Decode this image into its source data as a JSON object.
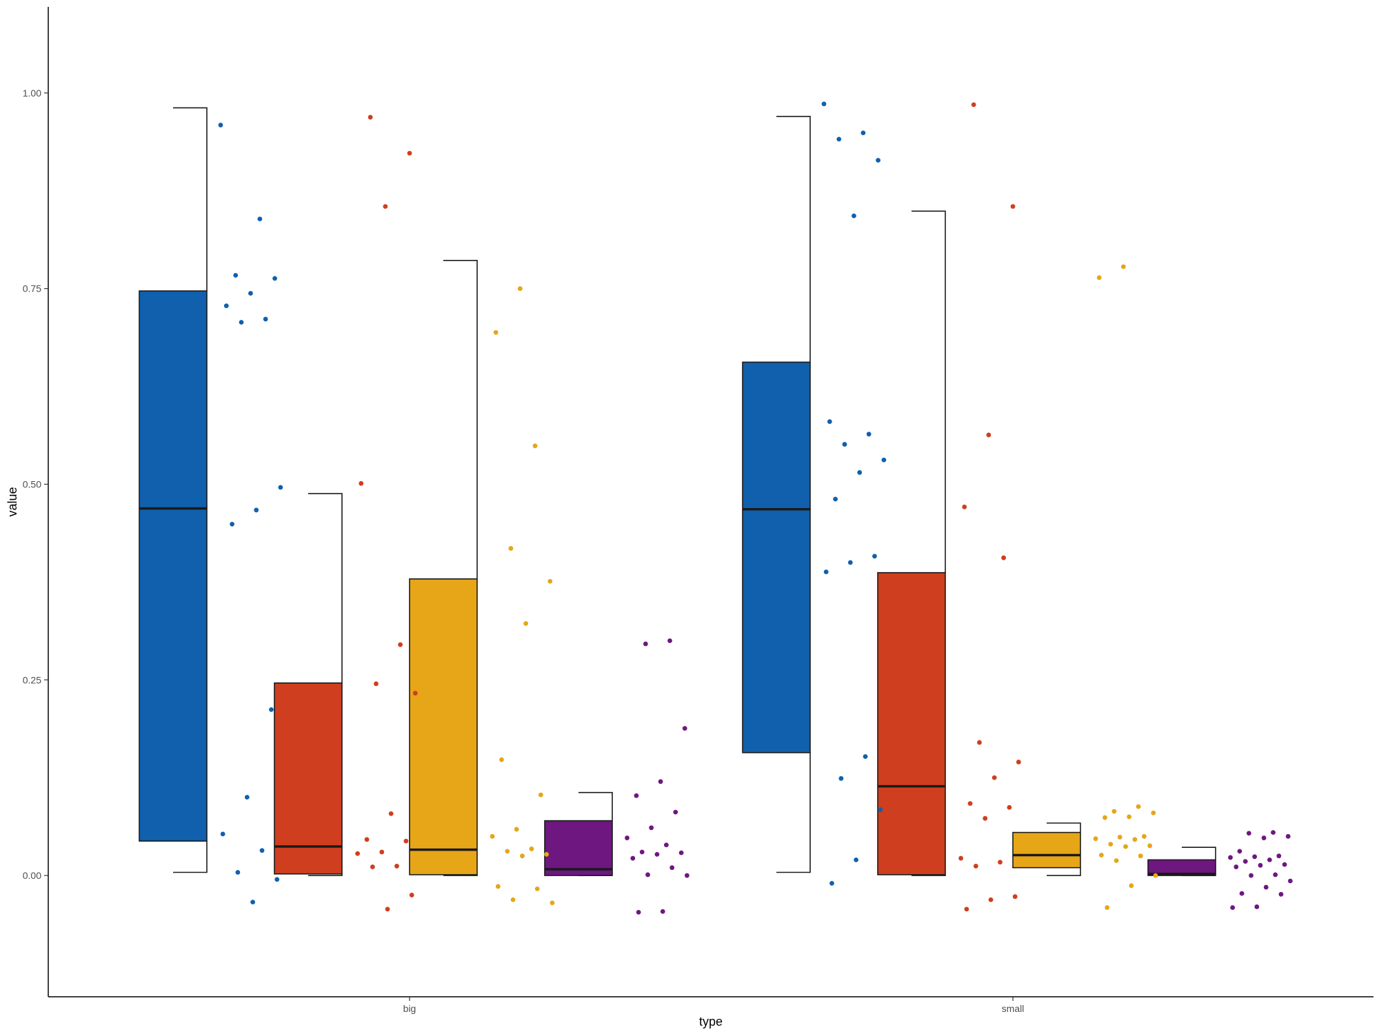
{
  "chart_data": {
    "type": "boxplot",
    "xlabel": "type",
    "ylabel": "value",
    "categories": [
      "big",
      "small"
    ],
    "ylim": [
      -0.155,
      1.11
    ],
    "yticks": [
      0.0,
      0.25,
      0.5,
      0.75,
      1.0
    ],
    "ytick_labels": [
      "0.00",
      "0.25",
      "0.50",
      "0.75",
      "1.00"
    ],
    "grid": false,
    "legend": "none",
    "series_colors": [
      "#1060ad",
      "#cf3e1e",
      "#e6a618",
      "#6e1780"
    ],
    "boxes": [
      {
        "category": "big",
        "group": 0,
        "lower": 0.004,
        "q1": 0.044,
        "median": 0.469,
        "q3": 0.747,
        "upper": 0.981
      },
      {
        "category": "big",
        "group": 1,
        "lower": 0.0,
        "q1": 0.002,
        "median": 0.037,
        "q3": 0.246,
        "upper": 0.488
      },
      {
        "category": "big",
        "group": 2,
        "lower": 0.0,
        "q1": 0.001,
        "median": 0.033,
        "q3": 0.379,
        "upper": 0.786
      },
      {
        "category": "big",
        "group": 3,
        "lower": 0.0,
        "q1": 0.0,
        "median": 0.008,
        "q3": 0.07,
        "upper": 0.106
      },
      {
        "category": "small",
        "group": 0,
        "lower": 0.004,
        "q1": 0.157,
        "median": 0.468,
        "q3": 0.656,
        "upper": 0.97
      },
      {
        "category": "small",
        "group": 1,
        "lower": 0.0,
        "q1": 0.001,
        "median": 0.114,
        "q3": 0.387,
        "upper": 0.849
      },
      {
        "category": "small",
        "group": 2,
        "lower": 0.0,
        "q1": 0.01,
        "median": 0.026,
        "q3": 0.055,
        "upper": 0.067
      },
      {
        "category": "small",
        "group": 3,
        "lower": 0.0,
        "q1": 0.0,
        "median": 0.002,
        "q3": 0.02,
        "upper": 0.036
      }
    ],
    "points": [
      {
        "category": "big",
        "group": 0,
        "values": [
          0.959,
          0.839,
          0.767,
          0.763,
          0.744,
          0.728,
          0.711,
          0.707,
          0.496,
          0.467,
          0.449,
          0.212,
          0.1,
          0.053,
          0.032,
          0.004,
          -0.005,
          -0.034
        ]
      },
      {
        "category": "big",
        "group": 1,
        "values": [
          0.969,
          0.923,
          0.855,
          0.501,
          0.295,
          0.245,
          0.233,
          0.079,
          0.046,
          0.044,
          0.03,
          0.028,
          0.012,
          0.011,
          -0.025,
          -0.043
        ]
      },
      {
        "category": "big",
        "group": 2,
        "values": [
          0.75,
          0.694,
          0.549,
          0.418,
          0.376,
          0.322,
          0.148,
          0.103,
          0.059,
          0.05,
          0.034,
          0.031,
          0.027,
          0.025,
          -0.014,
          -0.017,
          -0.031,
          -0.035
        ]
      },
      {
        "category": "big",
        "group": 3,
        "values": [
          0.3,
          0.296,
          0.188,
          0.12,
          0.102,
          0.081,
          0.061,
          0.048,
          0.039,
          0.03,
          0.029,
          0.027,
          0.022,
          0.01,
          0.001,
          0.0,
          -0.046,
          -0.047
        ]
      },
      {
        "category": "small",
        "group": 0,
        "values": [
          0.986,
          0.949,
          0.941,
          0.914,
          0.843,
          0.58,
          0.564,
          0.551,
          0.531,
          0.515,
          0.481,
          0.408,
          0.4,
          0.388,
          0.152,
          0.124,
          0.084,
          0.02,
          -0.01
        ]
      },
      {
        "category": "small",
        "group": 1,
        "values": [
          0.985,
          0.855,
          0.563,
          0.471,
          0.406,
          0.17,
          0.145,
          0.125,
          0.092,
          0.087,
          0.073,
          0.022,
          0.017,
          0.012,
          -0.027,
          -0.031,
          -0.043
        ]
      },
      {
        "category": "small",
        "group": 2,
        "values": [
          0.778,
          0.764,
          0.088,
          0.082,
          0.08,
          0.075,
          0.074,
          0.05,
          0.049,
          0.047,
          0.046,
          0.04,
          0.038,
          0.037,
          0.026,
          0.025,
          0.019,
          0.0,
          -0.013,
          -0.041
        ]
      },
      {
        "category": "small",
        "group": 3,
        "values": [
          0.055,
          0.054,
          0.05,
          0.048,
          0.031,
          0.025,
          0.024,
          0.023,
          0.02,
          0.018,
          0.014,
          0.013,
          0.011,
          0.001,
          0.0,
          -0.007,
          -0.015,
          -0.023,
          -0.024,
          -0.04,
          -0.041
        ]
      }
    ]
  }
}
